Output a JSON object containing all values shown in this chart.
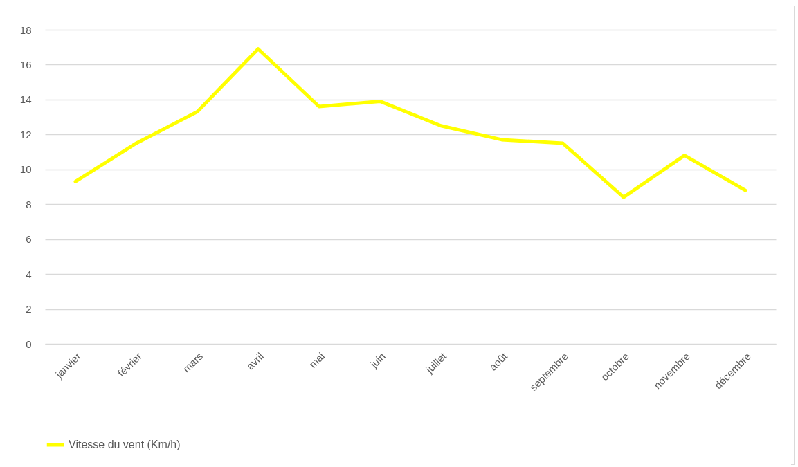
{
  "chart_data": {
    "type": "line",
    "categories": [
      "janvier",
      "février",
      "mars",
      "avril",
      "mai",
      "juin",
      "juillet",
      "août",
      "septembre",
      "octobre",
      "novembre",
      "décembre"
    ],
    "series": [
      {
        "name": "Vitesse du vent (Km/h)",
        "color": "#ffff00",
        "values": [
          9.3,
          11.5,
          13.3,
          16.9,
          13.6,
          13.9,
          12.5,
          11.7,
          11.5,
          8.4,
          10.8,
          8.8
        ]
      }
    ],
    "ylim": [
      0,
      18
    ],
    "yticks": [
      0,
      2,
      4,
      6,
      8,
      10,
      12,
      14,
      16,
      18
    ],
    "grid": "y",
    "legend": "bottom",
    "marker": "none",
    "line_style": "solid"
  }
}
